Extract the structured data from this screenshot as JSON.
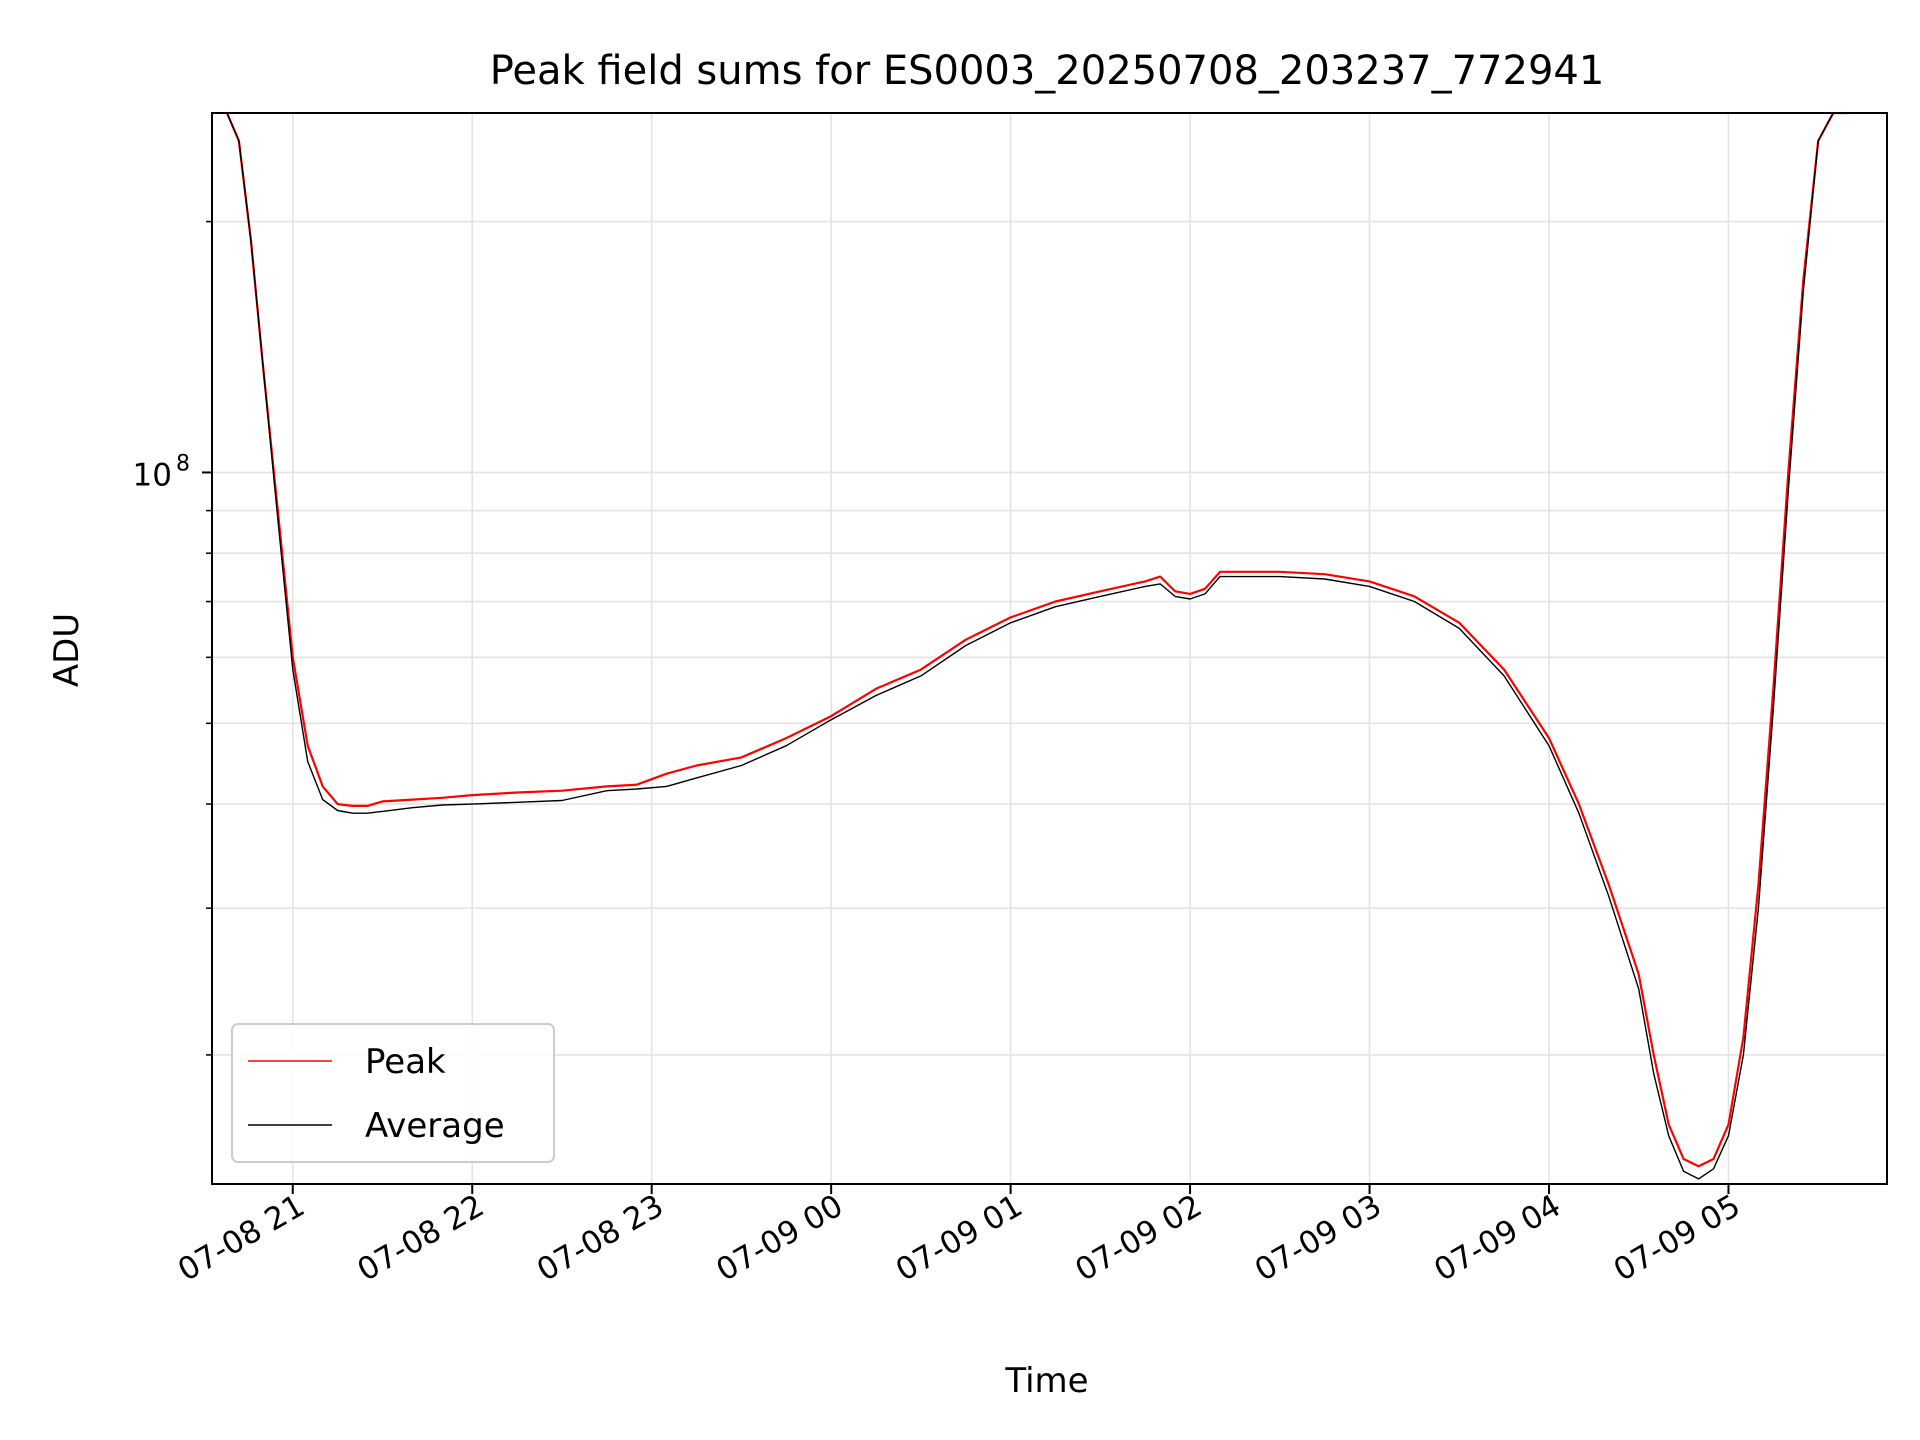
{
  "chart_data": {
    "type": "line",
    "title": "Peak field sums for ES0003_20250708_203237_772941",
    "xlabel": "Time",
    "ylabel": "ADU",
    "y_scale": "log",
    "grid": true,
    "legend_position": "lower-left",
    "xlim": [
      "2025-07-08 20:33",
      "2025-07-09 05:53"
    ],
    "ylim": [
      14000000,
      270000000
    ],
    "x_ticks": [
      {
        "label": "07-08 21",
        "value": "2025-07-08 21:00"
      },
      {
        "label": "07-08 22",
        "value": "2025-07-08 22:00"
      },
      {
        "label": "07-08 23",
        "value": "2025-07-08 23:00"
      },
      {
        "label": "07-09 00",
        "value": "2025-07-09 00:00"
      },
      {
        "label": "07-09 01",
        "value": "2025-07-09 01:00"
      },
      {
        "label": "07-09 02",
        "value": "2025-07-09 02:00"
      },
      {
        "label": "07-09 03",
        "value": "2025-07-09 03:00"
      },
      {
        "label": "07-09 04",
        "value": "2025-07-09 04:00"
      },
      {
        "label": "07-09 05",
        "value": "2025-07-09 05:00"
      }
    ],
    "y_ticks": [
      {
        "label_base": "10",
        "label_exp": "8",
        "value": 100000000
      }
    ],
    "series": [
      {
        "name": "Peak",
        "color": "#ff0000",
        "x": [
          "2025-07-08 20:38",
          "2025-07-08 20:42",
          "2025-07-08 20:46",
          "2025-07-08 20:50",
          "2025-07-08 20:55",
          "2025-07-08 21:00",
          "2025-07-08 21:05",
          "2025-07-08 21:10",
          "2025-07-08 21:15",
          "2025-07-08 21:20",
          "2025-07-08 21:25",
          "2025-07-08 21:30",
          "2025-07-08 21:40",
          "2025-07-08 21:50",
          "2025-07-08 22:00",
          "2025-07-08 22:15",
          "2025-07-08 22:30",
          "2025-07-08 22:45",
          "2025-07-08 22:55",
          "2025-07-08 23:05",
          "2025-07-08 23:15",
          "2025-07-08 23:30",
          "2025-07-08 23:45",
          "2025-07-09 00:00",
          "2025-07-09 00:15",
          "2025-07-09 00:30",
          "2025-07-09 00:45",
          "2025-07-09 01:00",
          "2025-07-09 01:15",
          "2025-07-09 01:30",
          "2025-07-09 01:45",
          "2025-07-09 01:50",
          "2025-07-09 01:55",
          "2025-07-09 02:00",
          "2025-07-09 02:05",
          "2025-07-09 02:10",
          "2025-07-09 02:30",
          "2025-07-09 02:45",
          "2025-07-09 03:00",
          "2025-07-09 03:15",
          "2025-07-09 03:30",
          "2025-07-09 03:45",
          "2025-07-09 04:00",
          "2025-07-09 04:10",
          "2025-07-09 04:20",
          "2025-07-09 04:30",
          "2025-07-09 04:35",
          "2025-07-09 04:40",
          "2025-07-09 04:45",
          "2025-07-09 04:50",
          "2025-07-09 04:55",
          "2025-07-09 05:00",
          "2025-07-09 05:05",
          "2025-07-09 05:10",
          "2025-07-09 05:15",
          "2025-07-09 05:20",
          "2025-07-09 05:25",
          "2025-07-09 05:30",
          "2025-07-09 05:35",
          "2025-07-09 05:40"
        ],
        "values": [
          270000000,
          250000000,
          190000000,
          135000000,
          90000000,
          60000000,
          47000000,
          42000000,
          40000000,
          39800000,
          39800000,
          40300000,
          40500000,
          40700000,
          41000000,
          41300000,
          41500000,
          42000000,
          42200000,
          43500000,
          44500000,
          45500000,
          48000000,
          51000000,
          55000000,
          58000000,
          63000000,
          67000000,
          70000000,
          72000000,
          74000000,
          75000000,
          72000000,
          71500000,
          72500000,
          76000000,
          76000000,
          75500000,
          74000000,
          71000000,
          66000000,
          58000000,
          48000000,
          40000000,
          32000000,
          25000000,
          20000000,
          16500000,
          15000000,
          14700000,
          15000000,
          16500000,
          21000000,
          32000000,
          55000000,
          100000000,
          170000000,
          250000000,
          270000000,
          270000000
        ]
      },
      {
        "name": "Average",
        "color": "#000000",
        "x": [
          "2025-07-08 20:38",
          "2025-07-08 20:42",
          "2025-07-08 20:46",
          "2025-07-08 20:50",
          "2025-07-08 20:55",
          "2025-07-08 21:00",
          "2025-07-08 21:05",
          "2025-07-08 21:10",
          "2025-07-08 21:15",
          "2025-07-08 21:20",
          "2025-07-08 21:25",
          "2025-07-08 21:30",
          "2025-07-08 21:40",
          "2025-07-08 21:50",
          "2025-07-08 22:00",
          "2025-07-08 22:15",
          "2025-07-08 22:30",
          "2025-07-08 22:45",
          "2025-07-08 22:55",
          "2025-07-08 23:05",
          "2025-07-08 23:15",
          "2025-07-08 23:30",
          "2025-07-08 23:45",
          "2025-07-09 00:00",
          "2025-07-09 00:15",
          "2025-07-09 00:30",
          "2025-07-09 00:45",
          "2025-07-09 01:00",
          "2025-07-09 01:15",
          "2025-07-09 01:30",
          "2025-07-09 01:45",
          "2025-07-09 01:50",
          "2025-07-09 01:55",
          "2025-07-09 02:00",
          "2025-07-09 02:05",
          "2025-07-09 02:10",
          "2025-07-09 02:30",
          "2025-07-09 02:45",
          "2025-07-09 03:00",
          "2025-07-09 03:15",
          "2025-07-09 03:30",
          "2025-07-09 03:45",
          "2025-07-09 04:00",
          "2025-07-09 04:10",
          "2025-07-09 04:20",
          "2025-07-09 04:30",
          "2025-07-09 04:35",
          "2025-07-09 04:40",
          "2025-07-09 04:45",
          "2025-07-09 04:50",
          "2025-07-09 04:55",
          "2025-07-09 05:00",
          "2025-07-09 05:05",
          "2025-07-09 05:10",
          "2025-07-09 05:15",
          "2025-07-09 05:20",
          "2025-07-09 05:25",
          "2025-07-09 05:30",
          "2025-07-09 05:35",
          "2025-07-09 05:40"
        ],
        "values": [
          270000000,
          250000000,
          190000000,
          135000000,
          88000000,
          58000000,
          45000000,
          40500000,
          39300000,
          39000000,
          39000000,
          39200000,
          39600000,
          39900000,
          40000000,
          40200000,
          40400000,
          41500000,
          41700000,
          42000000,
          43000000,
          44500000,
          47000000,
          50500000,
          54000000,
          57000000,
          62000000,
          66000000,
          69000000,
          71000000,
          73000000,
          73500000,
          71000000,
          70500000,
          71500000,
          75000000,
          75000000,
          74500000,
          73000000,
          70000000,
          65000000,
          57000000,
          47000000,
          39000000,
          31000000,
          24000000,
          19000000,
          16000000,
          14500000,
          14200000,
          14600000,
          16000000,
          20000000,
          30000000,
          52000000,
          95000000,
          165000000,
          250000000,
          270000000,
          270000000
        ]
      }
    ]
  }
}
